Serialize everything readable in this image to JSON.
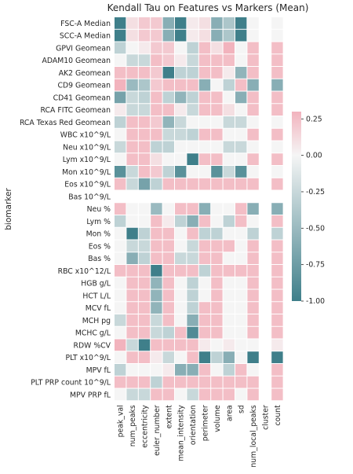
{
  "chart_data": {
    "type": "heatmap",
    "title": "Kendall Tau on Features vs Markers (Mean)",
    "ylabel": "biomarker",
    "xlabel": "",
    "x": [
      "peak_val",
      "num_peaks",
      "eccentricity",
      "euler_number",
      "extent",
      "mean_intensity",
      "orientation",
      "perimeter",
      "volume",
      "area",
      "sd",
      "num_local_peaks",
      "cluster",
      "count"
    ],
    "y": [
      "FSC-A Median",
      "SCC-A Median",
      "GPVI Geomean",
      "ADAM10 Geomean",
      "AK2 Geomean",
      "CD9 Geomean",
      "CD41 Geomean",
      "RCA FITC Geomean",
      "RCA Texas Red Geomean",
      "WBC x10^9/L",
      "Neu x10^9/L",
      "Lym x10^9/L",
      "Mon x10^9/L",
      "Eos x10^9/L",
      "Bas 10^9/L",
      "Neu %",
      "Lym %",
      "Mon %",
      "Eos %",
      "Bas %",
      "RBC x10^12/L",
      "HGB g/L",
      "HCT L/L",
      "MCV fL",
      "MCH pg",
      "MCHC g/L",
      "RDW %CV",
      "PLT x10^9/L",
      "MPV fL",
      "PLT PRP count 10^9/L",
      "MPV PRP fL"
    ],
    "values": [
      [
        -1.0,
        0.1,
        0.2,
        0.2,
        -0.6,
        -1.0,
        0.05,
        0.1,
        -0.6,
        -0.4,
        -1.0,
        0.0,
        null,
        0.0
      ],
      [
        -1.0,
        0.1,
        0.2,
        0.2,
        -0.6,
        -1.0,
        0.05,
        0.1,
        -0.6,
        -0.4,
        -1.0,
        0.0,
        null,
        0.0
      ],
      [
        -0.3,
        0.0,
        0.05,
        0.2,
        0.2,
        0.0,
        -0.3,
        0.25,
        0.1,
        0.3,
        0.0,
        0.25,
        null,
        0.25
      ],
      [
        0.0,
        -0.25,
        -0.25,
        0.25,
        0.2,
        0.05,
        -0.25,
        0.25,
        0.25,
        0.25,
        0.0,
        0.25,
        null,
        0.25
      ],
      [
        0.25,
        0.25,
        0.25,
        0.2,
        -1.0,
        -0.3,
        -0.3,
        0.25,
        0.25,
        0.05,
        -0.55,
        0.25,
        null,
        0.25
      ],
      [
        0.3,
        -0.5,
        -0.4,
        0.2,
        0.25,
        0.25,
        0.25,
        -0.6,
        0.0,
        -0.3,
        0.25,
        -0.6,
        null,
        -0.6
      ],
      [
        -0.7,
        -0.25,
        -0.3,
        0.25,
        -0.3,
        -0.55,
        -0.3,
        0.25,
        0.25,
        0.0,
        -0.6,
        0.25,
        null,
        0.25
      ],
      [
        0.05,
        -0.25,
        -0.25,
        0.25,
        0.25,
        0.05,
        -0.25,
        0.25,
        0.25,
        0.1,
        0.0,
        0.25,
        null,
        0.25
      ],
      [
        -0.3,
        0.25,
        0.25,
        0.2,
        -0.55,
        -0.25,
        0.0,
        0.0,
        0.0,
        -0.25,
        -0.25,
        0.0,
        null,
        0.0
      ],
      [
        0.0,
        0.25,
        0.25,
        0.25,
        -0.25,
        -0.25,
        -0.3,
        0.25,
        0.25,
        0.0,
        0.0,
        0.25,
        null,
        0.25
      ],
      [
        -0.25,
        0.25,
        0.25,
        -0.3,
        -0.3,
        0.0,
        0.0,
        0.0,
        0.0,
        -0.25,
        -0.25,
        0.0,
        null,
        0.0
      ],
      [
        0.0,
        0.25,
        0.25,
        0.1,
        0.0,
        0.0,
        -1.0,
        0.25,
        0.25,
        0.0,
        0.0,
        0.25,
        null,
        0.25
      ],
      [
        -0.85,
        -0.25,
        0.25,
        0.2,
        -0.3,
        -0.85,
        0.0,
        0.0,
        -0.85,
        -0.25,
        -0.85,
        0.0,
        null,
        0.0
      ],
      [
        0.25,
        -0.25,
        -0.7,
        -0.3,
        0.25,
        0.25,
        0.25,
        0.25,
        0.25,
        0.25,
        0.25,
        0.25,
        null,
        0.25
      ],
      [
        null,
        null,
        null,
        null,
        null,
        null,
        null,
        null,
        null,
        null,
        null,
        null,
        null,
        null
      ],
      [
        0.25,
        0.0,
        0.0,
        -0.5,
        0.0,
        0.25,
        0.25,
        -0.6,
        0.0,
        0.0,
        0.25,
        -0.6,
        null,
        -0.6
      ],
      [
        -0.3,
        0.0,
        0.0,
        0.25,
        0.05,
        -0.3,
        -0.6,
        0.25,
        0.0,
        -0.3,
        0.25,
        0.0,
        null,
        0.25
      ],
      [
        0.0,
        -1.0,
        -0.3,
        0.25,
        0.25,
        0.0,
        0.25,
        -0.3,
        -0.3,
        0.0,
        0.0,
        -0.3,
        null,
        -0.3
      ],
      [
        0.0,
        -0.25,
        -0.25,
        0.25,
        0.25,
        0.0,
        -0.25,
        0.25,
        0.25,
        0.25,
        0.0,
        0.25,
        null,
        0.25
      ],
      [
        0.0,
        -0.6,
        -0.3,
        0.25,
        0.25,
        -0.25,
        -0.25,
        0.25,
        0.25,
        0.0,
        0.0,
        0.25,
        null,
        0.25
      ],
      [
        0.25,
        0.25,
        0.25,
        -1.0,
        0.25,
        0.25,
        0.25,
        -0.3,
        0.25,
        0.25,
        0.25,
        0.25,
        null,
        0.25
      ],
      [
        0.0,
        0.25,
        0.25,
        -0.55,
        0.25,
        0.0,
        -0.3,
        0.0,
        0.25,
        0.0,
        0.0,
        0.25,
        null,
        0.25
      ],
      [
        0.0,
        0.25,
        0.25,
        -0.55,
        0.25,
        0.0,
        -0.3,
        0.0,
        0.25,
        0.0,
        0.0,
        0.25,
        null,
        0.25
      ],
      [
        0.0,
        0.25,
        0.25,
        -0.55,
        0.25,
        0.0,
        -0.3,
        0.25,
        0.25,
        0.0,
        0.0,
        0.25,
        null,
        0.25
      ],
      [
        -0.25,
        0.25,
        0.25,
        -0.25,
        0.25,
        0.0,
        -0.6,
        0.25,
        0.25,
        0.0,
        0.0,
        0.25,
        null,
        0.25
      ],
      [
        0.0,
        0.25,
        0.25,
        -0.25,
        -0.3,
        0.25,
        -0.9,
        0.25,
        0.25,
        0.0,
        0.0,
        0.25,
        null,
        0.25
      ],
      [
        0.3,
        -0.25,
        -1.0,
        0.25,
        0.25,
        0.25,
        0.25,
        0.05,
        0.0,
        0.05,
        0.0,
        0.0,
        null,
        0.05
      ],
      [
        0.0,
        0.25,
        0.25,
        0.05,
        -0.25,
        0.0,
        0.25,
        -1.0,
        -0.3,
        -0.6,
        0.0,
        -1.0,
        null,
        -1.0
      ],
      [
        -0.3,
        0.0,
        0.0,
        0.0,
        0.05,
        -0.6,
        -0.6,
        0.25,
        0.0,
        -0.3,
        0.25,
        0.0,
        null,
        0.25
      ],
      [
        0.25,
        0.25,
        0.25,
        -0.3,
        0.25,
        0.25,
        0.25,
        0.25,
        0.25,
        0.25,
        0.25,
        0.25,
        null,
        0.25
      ],
      [
        0.0,
        -0.25,
        -0.25,
        0.25,
        0.25,
        0.0,
        -0.25,
        0.25,
        0.25,
        0.25,
        0.0,
        0.25,
        null,
        0.25
      ]
    ],
    "colorbar": {
      "range": [
        -1.0,
        0.3
      ],
      "ticks": [
        -1.0,
        -0.75,
        -0.5,
        -0.25,
        0.0,
        0.25
      ]
    },
    "colors": {
      "low": "#3f7f8a",
      "mid": "#f5f5f5",
      "high": "#f2b3bd"
    },
    "grid": false,
    "legend": "colorbar-right"
  }
}
